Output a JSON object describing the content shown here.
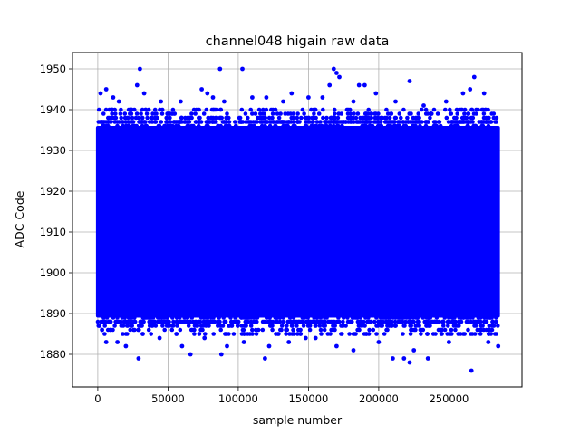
{
  "chart_data": {
    "type": "scatter",
    "title": "channel048 higain raw data",
    "xlabel": "sample number",
    "ylabel": "ADC Code",
    "xlim": [
      -18000,
      302000
    ],
    "ylim": [
      1872,
      1954
    ],
    "xticks": [
      0,
      50000,
      100000,
      150000,
      200000,
      250000
    ],
    "yticks": [
      1880,
      1890,
      1900,
      1910,
      1920,
      1930,
      1940,
      1950
    ],
    "grid": true,
    "marker_color": "#0000ff",
    "x_range": [
      0,
      285000
    ],
    "dense_band": {
      "low": 1889,
      "high": 1936
    },
    "outliers": [
      {
        "x": 2000,
        "y": 1944
      },
      {
        "x": 6000,
        "y": 1945
      },
      {
        "x": 11000,
        "y": 1943
      },
      {
        "x": 15000,
        "y": 1942
      },
      {
        "x": 24000,
        "y": 1940
      },
      {
        "x": 28000,
        "y": 1946
      },
      {
        "x": 30000,
        "y": 1950
      },
      {
        "x": 33000,
        "y": 1944
      },
      {
        "x": 45000,
        "y": 1942
      },
      {
        "x": 59000,
        "y": 1942
      },
      {
        "x": 74000,
        "y": 1945
      },
      {
        "x": 78000,
        "y": 1944
      },
      {
        "x": 82000,
        "y": 1943
      },
      {
        "x": 87000,
        "y": 1950
      },
      {
        "x": 90000,
        "y": 1942
      },
      {
        "x": 103000,
        "y": 1950
      },
      {
        "x": 110000,
        "y": 1943
      },
      {
        "x": 120000,
        "y": 1943
      },
      {
        "x": 132000,
        "y": 1942
      },
      {
        "x": 138000,
        "y": 1944
      },
      {
        "x": 150000,
        "y": 1943
      },
      {
        "x": 160000,
        "y": 1943
      },
      {
        "x": 165000,
        "y": 1946
      },
      {
        "x": 168000,
        "y": 1950
      },
      {
        "x": 170000,
        "y": 1949
      },
      {
        "x": 172000,
        "y": 1948
      },
      {
        "x": 182000,
        "y": 1942
      },
      {
        "x": 186000,
        "y": 1946
      },
      {
        "x": 190000,
        "y": 1946
      },
      {
        "x": 198000,
        "y": 1944
      },
      {
        "x": 212000,
        "y": 1942
      },
      {
        "x": 222000,
        "y": 1947
      },
      {
        "x": 232000,
        "y": 1941
      },
      {
        "x": 248000,
        "y": 1942
      },
      {
        "x": 260000,
        "y": 1944
      },
      {
        "x": 265000,
        "y": 1945
      },
      {
        "x": 268000,
        "y": 1948
      },
      {
        "x": 275000,
        "y": 1944
      },
      {
        "x": 3000,
        "y": 1886
      },
      {
        "x": 6000,
        "y": 1883
      },
      {
        "x": 14000,
        "y": 1883
      },
      {
        "x": 20000,
        "y": 1882
      },
      {
        "x": 29000,
        "y": 1879
      },
      {
        "x": 32000,
        "y": 1885
      },
      {
        "x": 44000,
        "y": 1884
      },
      {
        "x": 56000,
        "y": 1885
      },
      {
        "x": 60000,
        "y": 1882
      },
      {
        "x": 66000,
        "y": 1880
      },
      {
        "x": 76000,
        "y": 1884
      },
      {
        "x": 88000,
        "y": 1880
      },
      {
        "x": 92000,
        "y": 1882
      },
      {
        "x": 104000,
        "y": 1883
      },
      {
        "x": 119000,
        "y": 1879
      },
      {
        "x": 122000,
        "y": 1882
      },
      {
        "x": 136000,
        "y": 1883
      },
      {
        "x": 148000,
        "y": 1884
      },
      {
        "x": 155000,
        "y": 1884
      },
      {
        "x": 170000,
        "y": 1882
      },
      {
        "x": 182000,
        "y": 1881
      },
      {
        "x": 200000,
        "y": 1883
      },
      {
        "x": 210000,
        "y": 1879
      },
      {
        "x": 218000,
        "y": 1879
      },
      {
        "x": 222000,
        "y": 1878
      },
      {
        "x": 225000,
        "y": 1881
      },
      {
        "x": 235000,
        "y": 1879
      },
      {
        "x": 250000,
        "y": 1883
      },
      {
        "x": 266000,
        "y": 1876
      },
      {
        "x": 278000,
        "y": 1883
      },
      {
        "x": 285000,
        "y": 1882
      }
    ]
  }
}
